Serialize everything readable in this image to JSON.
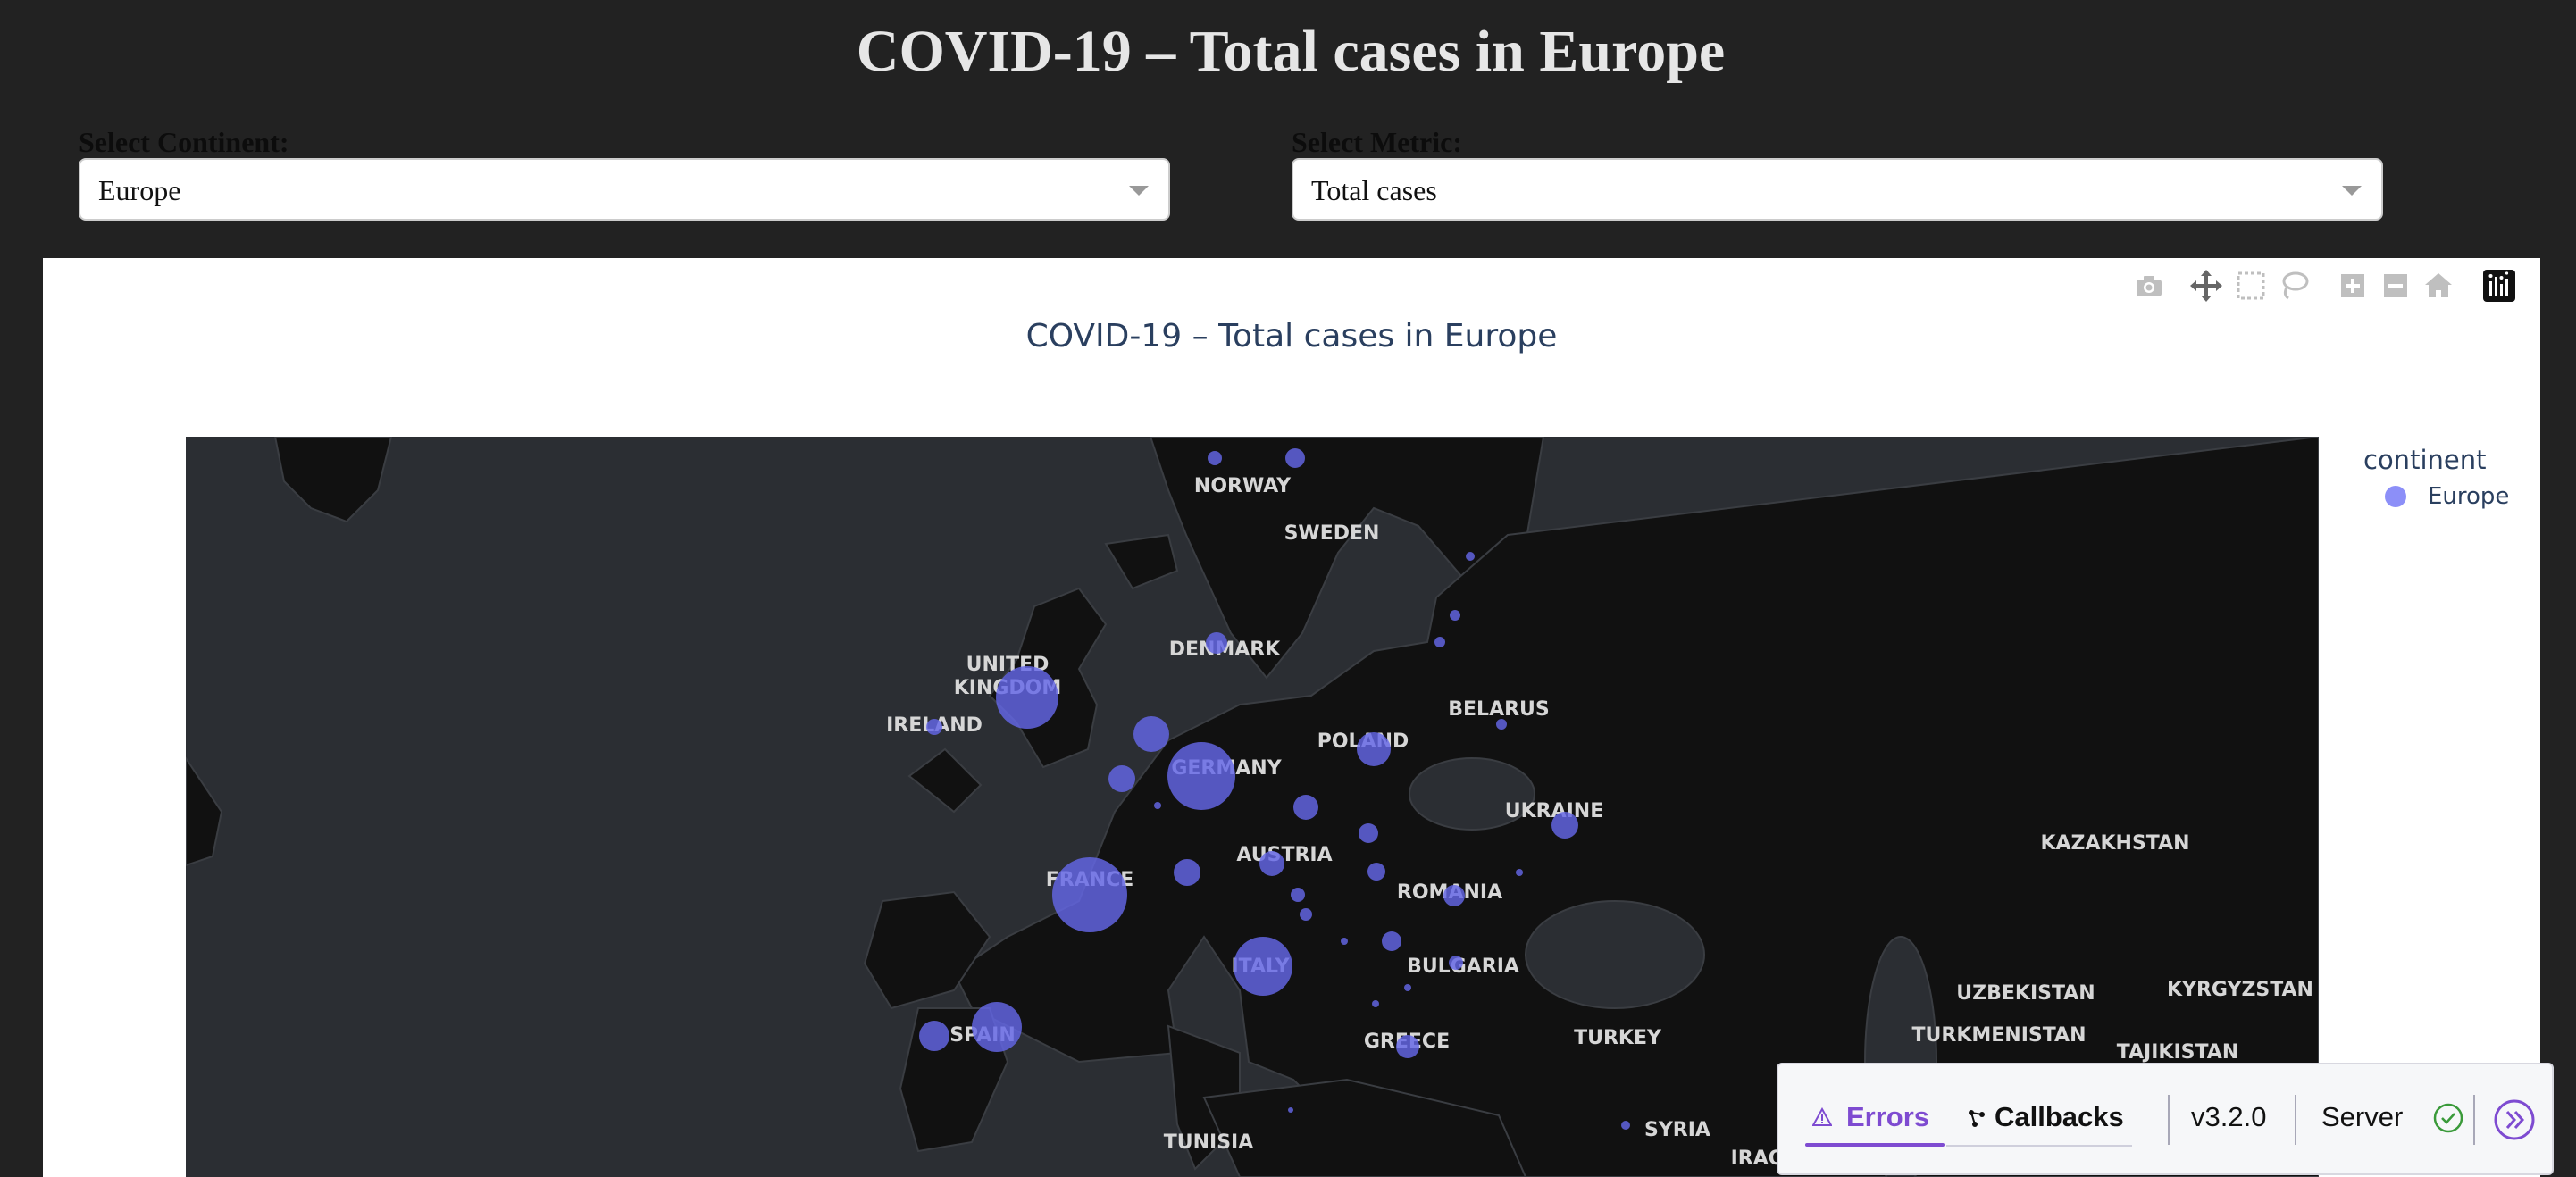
{
  "page": {
    "title": "COVID-19 – Total cases in Europe"
  },
  "controls": {
    "continent": {
      "label": "Select Continent:",
      "value": "Europe"
    },
    "metric": {
      "label": "Select Metric:",
      "value": "Total cases"
    }
  },
  "graph": {
    "title": "COVID-19 – Total cases in Europe",
    "legend": {
      "title": "continent",
      "items": [
        {
          "label": "Europe",
          "color": "#8c8ff8"
        }
      ]
    },
    "modebar": [
      "camera-icon",
      "pan-icon",
      "box-select-icon",
      "lasso-icon",
      "zoom-in-icon",
      "zoom-out-icon",
      "reset-home-icon",
      "plotly-logo-icon"
    ],
    "map_labels": [
      "NORWAY",
      "SWEDEN",
      "DENMARK",
      "UNITED",
      "KINGDOM",
      "IRELAND",
      "BELARUS",
      "POLAND",
      "GERMANY",
      "UKRAINE",
      "KAZAKHSTAN",
      "AUSTRIA",
      "FRANCE",
      "ROMANIA",
      "BULGARIA",
      "ITALY",
      "UZBEKISTAN",
      "KYRGYZSTAN",
      "SPAIN",
      "GREECE",
      "TURKEY",
      "TURKMENISTAN",
      "TAJIKISTAN",
      "TUNISIA",
      "SYRIA",
      "IRAQ"
    ]
  },
  "devtools": {
    "errors_label": "Errors",
    "callbacks_label": "Callbacks",
    "version": "v3.2.0",
    "server_label": "Server"
  },
  "colors": {
    "bubble": "#6466e6",
    "accent": "#7e4bd1",
    "map_water": "#2b2e33",
    "map_land": "#111111"
  }
}
